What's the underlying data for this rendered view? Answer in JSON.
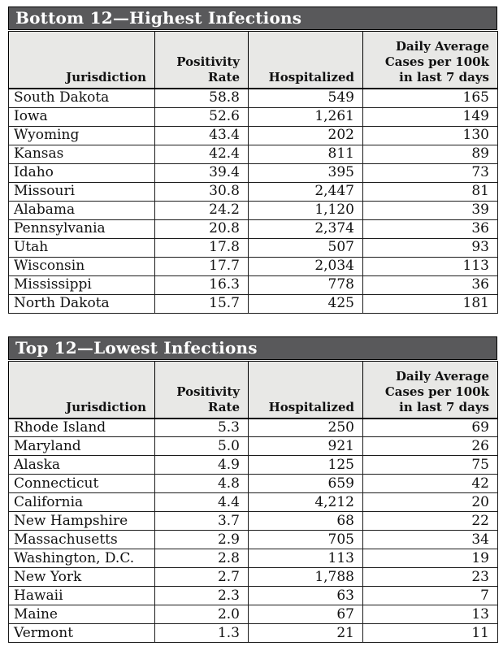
{
  "colors": {
    "title_bar_bg": "#59595b",
    "header_bg": "#e8e8e6",
    "border_color": "#000000",
    "row_border": "#1c1c1c",
    "text_color": "#111111",
    "title_text": "#ffffff",
    "page_bg": "#ffffff"
  },
  "chart_data": [
    {
      "type": "table",
      "title": "Bottom 12—Highest Infections",
      "columns": [
        "Jurisdiction",
        "Positivity\nRate",
        "Hospitalized",
        "Daily Average\nCases per 100k\nin last 7 days"
      ],
      "rows": [
        [
          "South Dakota",
          "58.8",
          "549",
          "165"
        ],
        [
          "Iowa",
          "52.6",
          "1,261",
          "149"
        ],
        [
          "Wyoming",
          "43.4",
          "202",
          "130"
        ],
        [
          "Kansas",
          "42.4",
          "811",
          "89"
        ],
        [
          "Idaho",
          "39.4",
          "395",
          "73"
        ],
        [
          "Missouri",
          "30.8",
          "2,447",
          "81"
        ],
        [
          "Alabama",
          "24.2",
          "1,120",
          "39"
        ],
        [
          "Pennsylvania",
          "20.8",
          "2,374",
          "36"
        ],
        [
          "Utah",
          "17.8",
          "507",
          "93"
        ],
        [
          "Wisconsin",
          "17.7",
          "2,034",
          "113"
        ],
        [
          "Mississippi",
          "16.3",
          "778",
          "36"
        ],
        [
          "North Dakota",
          "15.7",
          "425",
          "181"
        ]
      ]
    },
    {
      "type": "table",
      "title": "Top 12—Lowest Infections",
      "columns": [
        "Jurisdiction",
        "Positivity\nRate",
        "Hospitalized",
        "Daily Average\nCases per 100k\nin last 7 days"
      ],
      "rows": [
        [
          "Rhode Island",
          "5.3",
          "250",
          "69"
        ],
        [
          "Maryland",
          "5.0",
          "921",
          "26"
        ],
        [
          "Alaska",
          "4.9",
          "125",
          "75"
        ],
        [
          "Connecticut",
          "4.8",
          "659",
          "42"
        ],
        [
          "California",
          "4.4",
          "4,212",
          "20"
        ],
        [
          "New Hampshire",
          "3.7",
          "68",
          "22"
        ],
        [
          "Massachusetts",
          "2.9",
          "705",
          "34"
        ],
        [
          "Washington, D.C.",
          "2.8",
          "113",
          "19"
        ],
        [
          "New York",
          "2.7",
          "1,788",
          "23"
        ],
        [
          "Hawaii",
          "2.3",
          "63",
          "7"
        ],
        [
          "Maine",
          "2.0",
          "67",
          "13"
        ],
        [
          "Vermont",
          "1.3",
          "21",
          "11"
        ]
      ]
    }
  ]
}
